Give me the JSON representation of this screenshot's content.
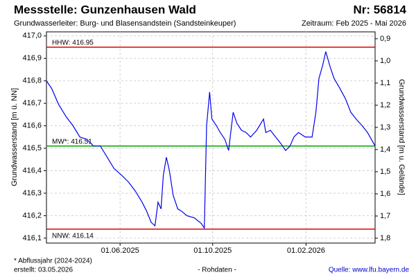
{
  "chart_data": {
    "type": "line",
    "title": "Messstelle: Gunzenhausen Wald",
    "station_number": "Nr: 56814",
    "subtitle": "Grundwasserleiter:  Burg- und Blasensandstein (Sandsteinkeuper)",
    "period": "Zeitraum: Feb 2025 - Mai 2026",
    "ylabel": "Grundwasserstand [m ü. NN]",
    "y2label": "Grundwasserstand [m u. Gelände]",
    "footnote": "* Abflussjahr (2024-2024)",
    "created": "erstellt:  03.05.2026",
    "data_note": "- Rohdaten -",
    "source": "Quelle:  www.lfu.bayern.de",
    "grid": true,
    "xlim": [
      "2025-02-24",
      "2026-05-03"
    ],
    "xticks": [
      {
        "value": "2025-06-01",
        "label": "01.06.2025"
      },
      {
        "value": "2025-10-01",
        "label": "01.10.2025"
      },
      {
        "value": "2026-02-01",
        "label": "01.02.2026"
      }
    ],
    "ylim": [
      416.078,
      417.018
    ],
    "yticks": [
      {
        "value": 416.1,
        "label": "416,1"
      },
      {
        "value": 416.2,
        "label": "416,2"
      },
      {
        "value": 416.3,
        "label": "416,3"
      },
      {
        "value": 416.4,
        "label": "416,4"
      },
      {
        "value": 416.5,
        "label": "416,5"
      },
      {
        "value": 416.6,
        "label": "416,6"
      },
      {
        "value": 416.7,
        "label": "416,7"
      },
      {
        "value": 416.8,
        "label": "416,8"
      },
      {
        "value": 416.9,
        "label": "416,9"
      },
      {
        "value": 417.0,
        "label": "417,0"
      }
    ],
    "y2lim": [
      1.822,
      0.869
    ],
    "y2ticks": [
      {
        "value": 0.9,
        "label": "0,9"
      },
      {
        "value": 1.0,
        "label": "1,0"
      },
      {
        "value": 1.1,
        "label": "1,1"
      },
      {
        "value": 1.2,
        "label": "1,2"
      },
      {
        "value": 1.3,
        "label": "1,3"
      },
      {
        "value": 1.4,
        "label": "1,4"
      },
      {
        "value": 1.5,
        "label": "1,5"
      },
      {
        "value": 1.6,
        "label": "1,6"
      },
      {
        "value": 1.7,
        "label": "1,7"
      },
      {
        "value": 1.8,
        "label": "1,8"
      }
    ],
    "reference_lines": [
      {
        "label": "HHW: 416.95",
        "value": 416.95,
        "color": "#e00000"
      },
      {
        "label": "MW*: 416.51",
        "value": 416.51,
        "color": "#00a000"
      },
      {
        "label": "NNW: 416.14",
        "value": 416.14,
        "color": "#e00000"
      }
    ],
    "series": [
      {
        "color": "#0000ee",
        "x": [
          "2025-02-24",
          "2025-03-03",
          "2025-03-12",
          "2025-03-22",
          "2025-03-31",
          "2025-04-09",
          "2025-04-18",
          "2025-04-27",
          "2025-05-06",
          "2025-05-15",
          "2025-05-24",
          "2025-06-03",
          "2025-06-12",
          "2025-06-21",
          "2025-06-30",
          "2025-07-06",
          "2025-07-12",
          "2025-07-17",
          "2025-07-21",
          "2025-07-25",
          "2025-07-28",
          "2025-08-01",
          "2025-08-05",
          "2025-08-10",
          "2025-08-16",
          "2025-08-21",
          "2025-08-28",
          "2025-09-07",
          "2025-09-16",
          "2025-09-20",
          "2025-09-23",
          "2025-09-27",
          "2025-09-30",
          "2025-10-06",
          "2025-10-11",
          "2025-10-17",
          "2025-10-22",
          "2025-10-28",
          "2025-11-02",
          "2025-11-08",
          "2025-11-14",
          "2025-11-20",
          "2025-11-28",
          "2025-12-07",
          "2025-12-10",
          "2025-12-16",
          "2025-12-23",
          "2025-12-30",
          "2026-01-05",
          "2026-01-11",
          "2026-01-16",
          "2026-01-22",
          "2026-01-31",
          "2026-02-09",
          "2026-02-14",
          "2026-02-18",
          "2026-02-23",
          "2026-02-27",
          "2026-03-05",
          "2026-03-10",
          "2026-03-17",
          "2026-03-25",
          "2026-04-01",
          "2026-04-08",
          "2026-04-16",
          "2026-04-23",
          "2026-04-28",
          "2026-05-03"
        ],
        "values": [
          416.8,
          416.765,
          416.695,
          416.64,
          416.6,
          416.55,
          416.54,
          416.51,
          416.51,
          416.46,
          416.41,
          416.38,
          416.35,
          416.31,
          416.26,
          416.22,
          416.17,
          416.155,
          416.26,
          416.23,
          416.38,
          416.46,
          416.4,
          416.29,
          416.23,
          416.22,
          416.2,
          416.19,
          416.165,
          416.145,
          416.6,
          416.75,
          416.63,
          416.6,
          416.57,
          416.54,
          416.49,
          416.66,
          416.61,
          416.58,
          416.57,
          416.55,
          416.58,
          416.63,
          416.57,
          416.58,
          416.55,
          416.52,
          416.49,
          416.51,
          416.55,
          416.57,
          416.55,
          416.55,
          416.66,
          416.81,
          416.87,
          416.93,
          416.86,
          416.81,
          416.77,
          416.72,
          416.66,
          416.63,
          416.6,
          416.57,
          416.54,
          416.51
        ]
      }
    ]
  }
}
